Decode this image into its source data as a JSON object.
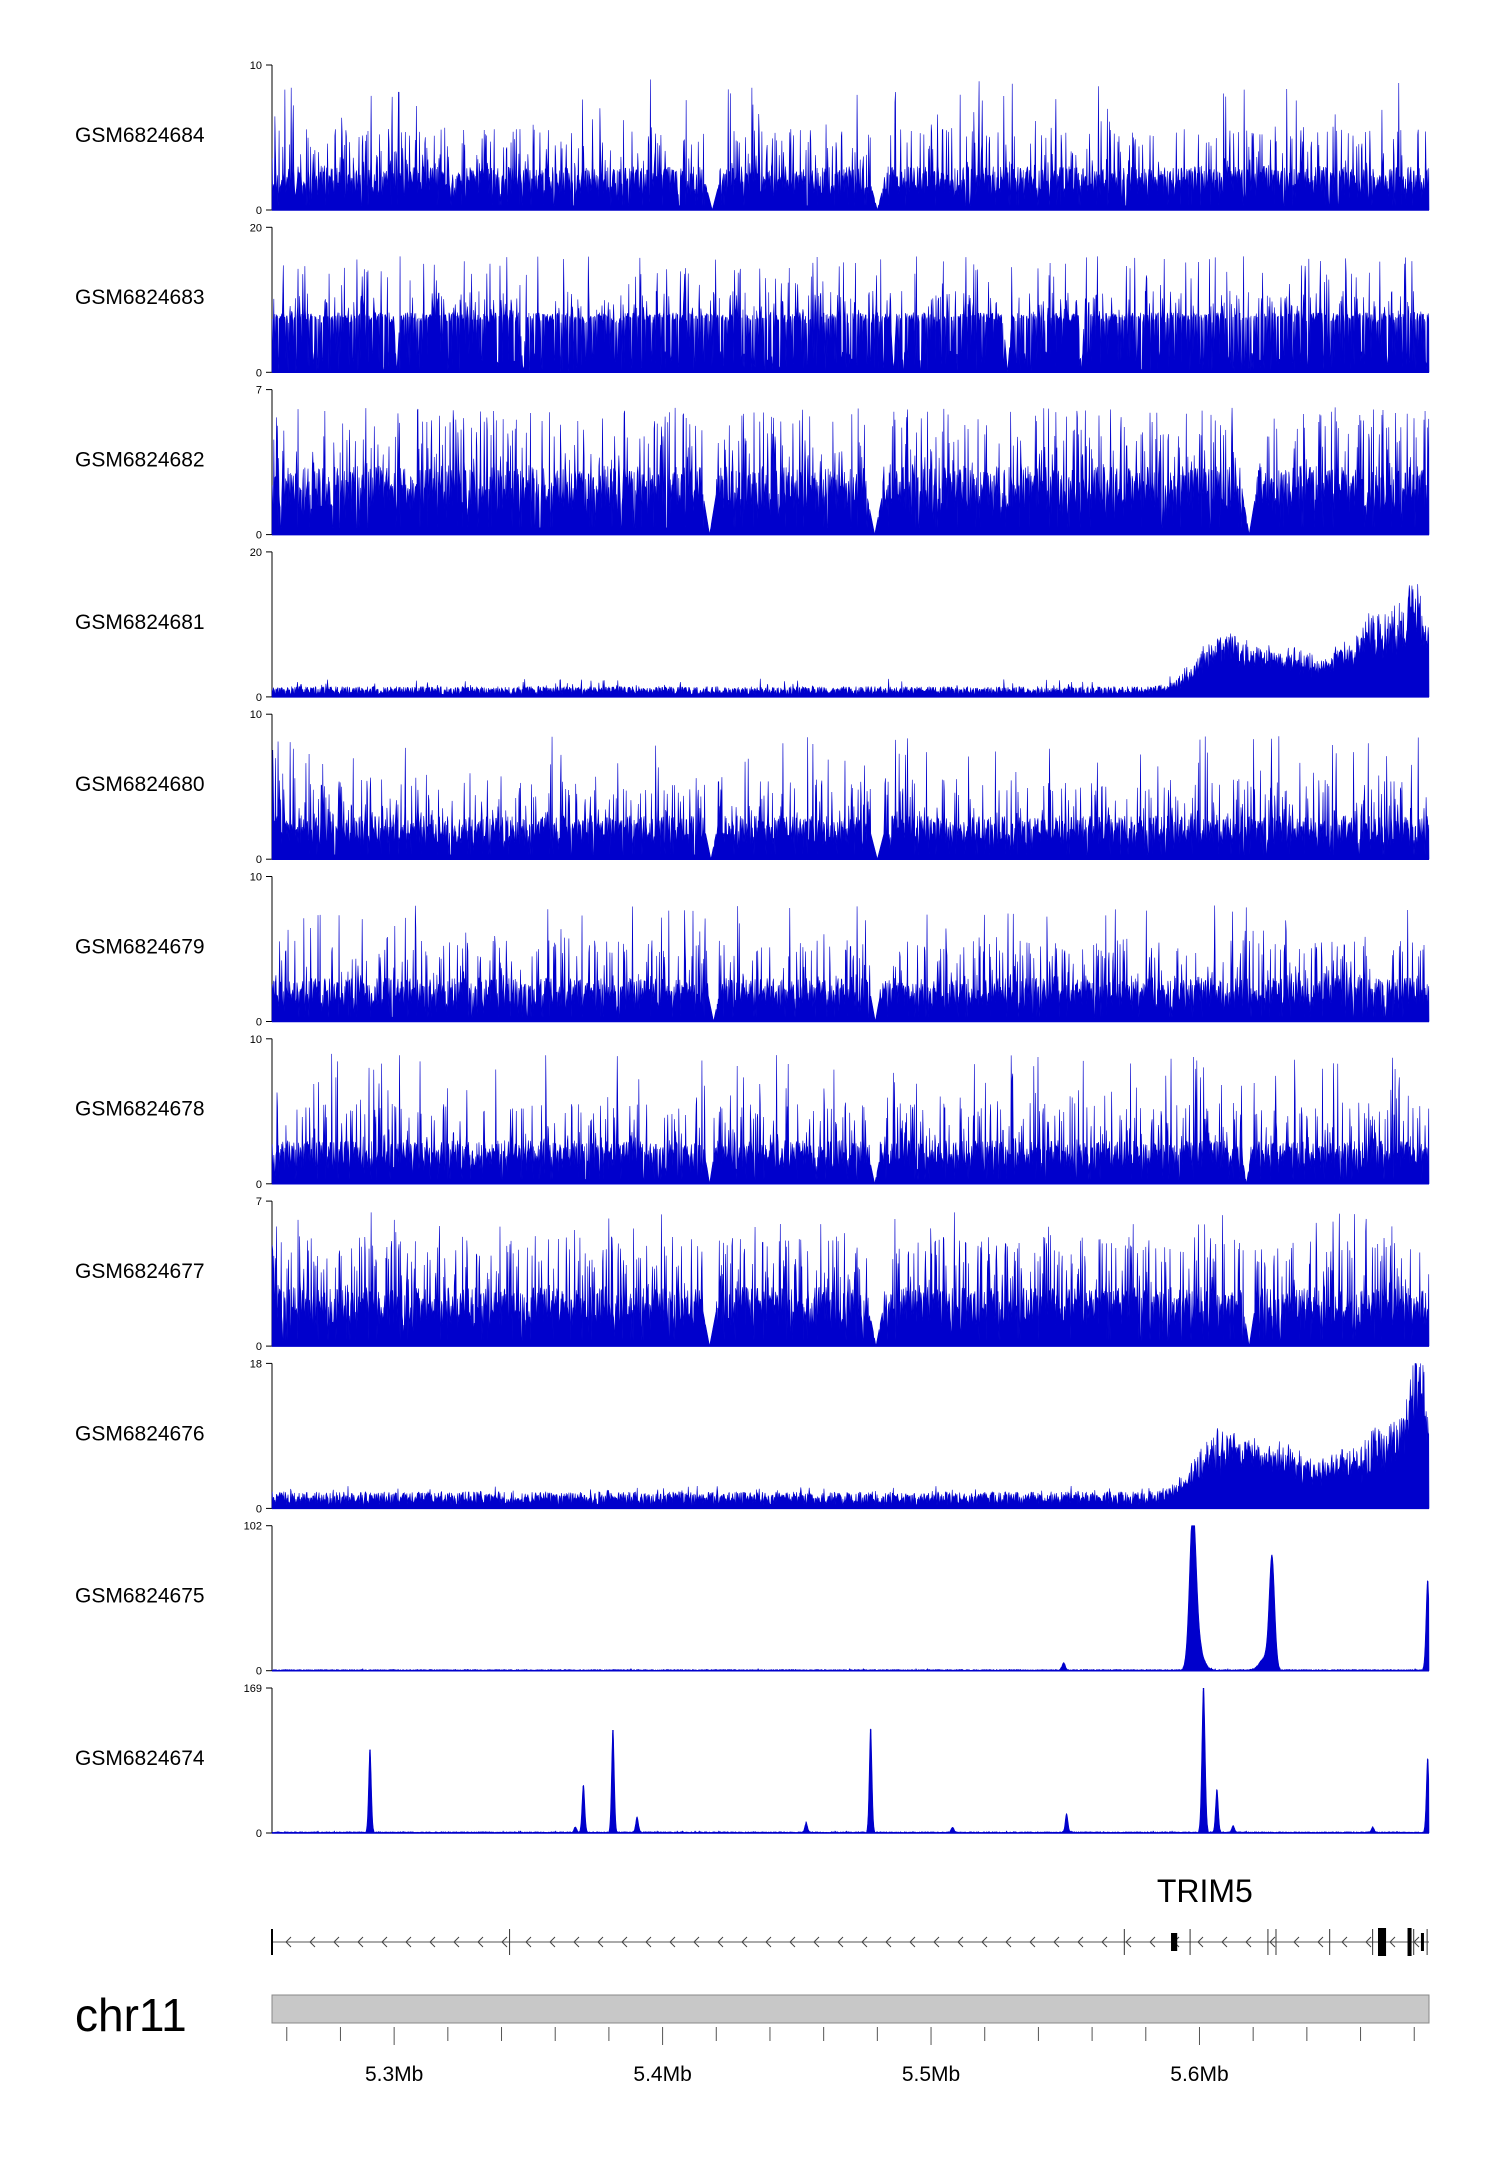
{
  "chart_data": {
    "type": "area",
    "chromosome": "chr11",
    "x_unit": "Mb",
    "xlim": [
      5.2545,
      5.6855
    ],
    "x_ticks": [
      {
        "value": 5.3,
        "label": "5.3Mb"
      },
      {
        "value": 5.4,
        "label": "5.4Mb"
      },
      {
        "value": 5.5,
        "label": "5.5Mb"
      },
      {
        "value": 5.6,
        "label": "5.6Mb"
      }
    ],
    "series_color": "#0000cc",
    "tracks": [
      {
        "name": "GSM6824684",
        "ylim": [
          0,
          10
        ],
        "ymax_label": "10",
        "ymin_label": "0",
        "profile": "uniform",
        "base": 2.0,
        "peak_max": 9.0,
        "gaps": [
          [
            5.416,
            5.421
          ],
          [
            5.4775,
            5.4825
          ]
        ],
        "peaks": []
      },
      {
        "name": "GSM6824683",
        "ylim": [
          0,
          20
        ],
        "ymax_label": "20",
        "ymin_label": "0",
        "profile": "sparse",
        "base": 7.5,
        "peak_max": 16.0,
        "gaps": [
          [
            5.3,
            5.302
          ],
          [
            5.347,
            5.349
          ],
          [
            5.485,
            5.487
          ],
          [
            5.527,
            5.53
          ],
          [
            5.555,
            5.557
          ]
        ],
        "peaks": []
      },
      {
        "name": "GSM6824682",
        "ylim": [
          0,
          7
        ],
        "ymax_label": "7",
        "ymin_label": "0",
        "profile": "uniform",
        "base": 2.2,
        "peak_max": 6.0,
        "gaps": [
          [
            5.415,
            5.42
          ],
          [
            5.476,
            5.482
          ],
          [
            5.616,
            5.621
          ]
        ],
        "peaks": []
      },
      {
        "name": "GSM6824681",
        "ylim": [
          0,
          20
        ],
        "ymax_label": "20",
        "ymin_label": "0",
        "profile": "enriched",
        "base": 0.9,
        "peak_max": 2.5,
        "gaps": [],
        "peaks": [
          {
            "x": 5.6085,
            "height": 6.5,
            "width": 0.009
          },
          {
            "x": 5.625,
            "height": 3.2,
            "width": 0.007
          },
          {
            "x": 5.6385,
            "height": 4.2,
            "width": 0.007
          },
          {
            "x": 5.652,
            "height": 3.5,
            "width": 0.004
          },
          {
            "x": 5.662,
            "height": 2.8,
            "width": 0.003
          },
          {
            "x": 5.675,
            "height": 10.5,
            "width": 0.012
          },
          {
            "x": 5.6805,
            "height": 5.0,
            "width": 0.002
          }
        ]
      },
      {
        "name": "GSM6824680",
        "ylim": [
          0,
          10
        ],
        "ymax_label": "10",
        "ymin_label": "0",
        "profile": "uniform",
        "base": 2.0,
        "peak_max": 8.5,
        "gaps": [
          [
            5.416,
            5.42
          ],
          [
            5.4775,
            5.4825
          ]
        ],
        "peaks": []
      },
      {
        "name": "GSM6824679",
        "ylim": [
          0,
          10
        ],
        "ymax_label": "10",
        "ymin_label": "0",
        "profile": "uniform",
        "base": 2.0,
        "peak_max": 8.0,
        "gaps": [
          [
            5.417,
            5.421
          ],
          [
            5.4775,
            5.481
          ]
        ],
        "peaks": []
      },
      {
        "name": "GSM6824678",
        "ylim": [
          0,
          10
        ],
        "ymax_label": "10",
        "ymin_label": "0",
        "profile": "uniform",
        "base": 2.0,
        "peak_max": 9.0,
        "gaps": [
          [
            5.416,
            5.419
          ],
          [
            5.477,
            5.481
          ],
          [
            5.616,
            5.619
          ]
        ],
        "peaks": []
      },
      {
        "name": "GSM6824677",
        "ylim": [
          0,
          7
        ],
        "ymax_label": "7",
        "ymin_label": "0",
        "profile": "uniform",
        "base": 1.9,
        "peak_max": 6.5,
        "gaps": [
          [
            5.415,
            5.42
          ],
          [
            5.477,
            5.482
          ],
          [
            5.6165,
            5.6205
          ]
        ],
        "peaks": []
      },
      {
        "name": "GSM6824676",
        "ylim": [
          0,
          18
        ],
        "ymax_label": "18",
        "ymin_label": "0",
        "profile": "enriched",
        "base": 1.3,
        "peak_max": 2.8,
        "gaps": [],
        "peaks": [
          {
            "x": 5.6075,
            "height": 6.5,
            "width": 0.009
          },
          {
            "x": 5.622,
            "height": 3.8,
            "width": 0.007
          },
          {
            "x": 5.637,
            "height": 4.5,
            "width": 0.008
          },
          {
            "x": 5.652,
            "height": 3.0,
            "width": 0.004
          },
          {
            "x": 5.672,
            "height": 8.5,
            "width": 0.011
          },
          {
            "x": 5.6815,
            "height": 12.0,
            "width": 0.003
          }
        ]
      },
      {
        "name": "GSM6824675",
        "ylim": [
          0,
          102
        ],
        "ymax_label": "102",
        "ymin_label": "0",
        "profile": "peaks",
        "base": 0.7,
        "peak_max": 1.5,
        "gaps": [],
        "peaks": [
          {
            "x": 5.5494,
            "height": 5,
            "width": 0.0006
          },
          {
            "x": 5.5975,
            "height": 100,
            "width": 0.0012
          },
          {
            "x": 5.599,
            "height": 20,
            "width": 0.002
          },
          {
            "x": 5.6245,
            "height": 9,
            "width": 0.002
          },
          {
            "x": 5.627,
            "height": 77,
            "width": 0.001
          },
          {
            "x": 5.685,
            "height": 63,
            "width": 0.0006
          }
        ]
      },
      {
        "name": "GSM6824674",
        "ylim": [
          0,
          169
        ],
        "ymax_label": "169",
        "ymin_label": "0",
        "profile": "peaks",
        "base": 1.2,
        "peak_max": 2.5,
        "gaps": [],
        "peaks": [
          {
            "x": 5.291,
            "height": 97,
            "width": 0.0005
          },
          {
            "x": 5.3675,
            "height": 6,
            "width": 0.0005
          },
          {
            "x": 5.3705,
            "height": 55,
            "width": 0.0005
          },
          {
            "x": 5.3815,
            "height": 120,
            "width": 0.0005
          },
          {
            "x": 5.3905,
            "height": 18,
            "width": 0.0005
          },
          {
            "x": 5.4535,
            "height": 11,
            "width": 0.0005
          },
          {
            "x": 5.4775,
            "height": 121,
            "width": 0.0005
          },
          {
            "x": 5.508,
            "height": 6,
            "width": 0.0005
          },
          {
            "x": 5.5505,
            "height": 22,
            "width": 0.0005
          },
          {
            "x": 5.6015,
            "height": 169,
            "width": 0.0006
          },
          {
            "x": 5.6065,
            "height": 50,
            "width": 0.0005
          },
          {
            "x": 5.6125,
            "height": 8,
            "width": 0.0005
          },
          {
            "x": 5.6645,
            "height": 6,
            "width": 0.0005
          },
          {
            "x": 5.685,
            "height": 86,
            "width": 0.0005
          }
        ]
      }
    ],
    "gene_track": {
      "gene_name": "TRIM5",
      "label_position": 5.602,
      "strand": "-",
      "span": [
        5.2545,
        5.6855
      ],
      "exons": [
        {
          "start": 5.5894,
          "end": 5.5917,
          "tall": false
        },
        {
          "start": 5.6665,
          "end": 5.6695,
          "tall": true
        },
        {
          "start": 5.6775,
          "end": 5.679,
          "tall": true
        },
        {
          "start": 5.6825,
          "end": 5.6835,
          "tall": false
        }
      ],
      "isoform_marks": [
        5.2545,
        5.343,
        5.572,
        5.5965,
        5.6255,
        5.6285,
        5.6485,
        5.6645,
        5.6675,
        5.6785,
        5.6798,
        5.6848
      ]
    },
    "chromosome_bar": {
      "color": "#c8c8c8",
      "border": "#888888"
    }
  }
}
